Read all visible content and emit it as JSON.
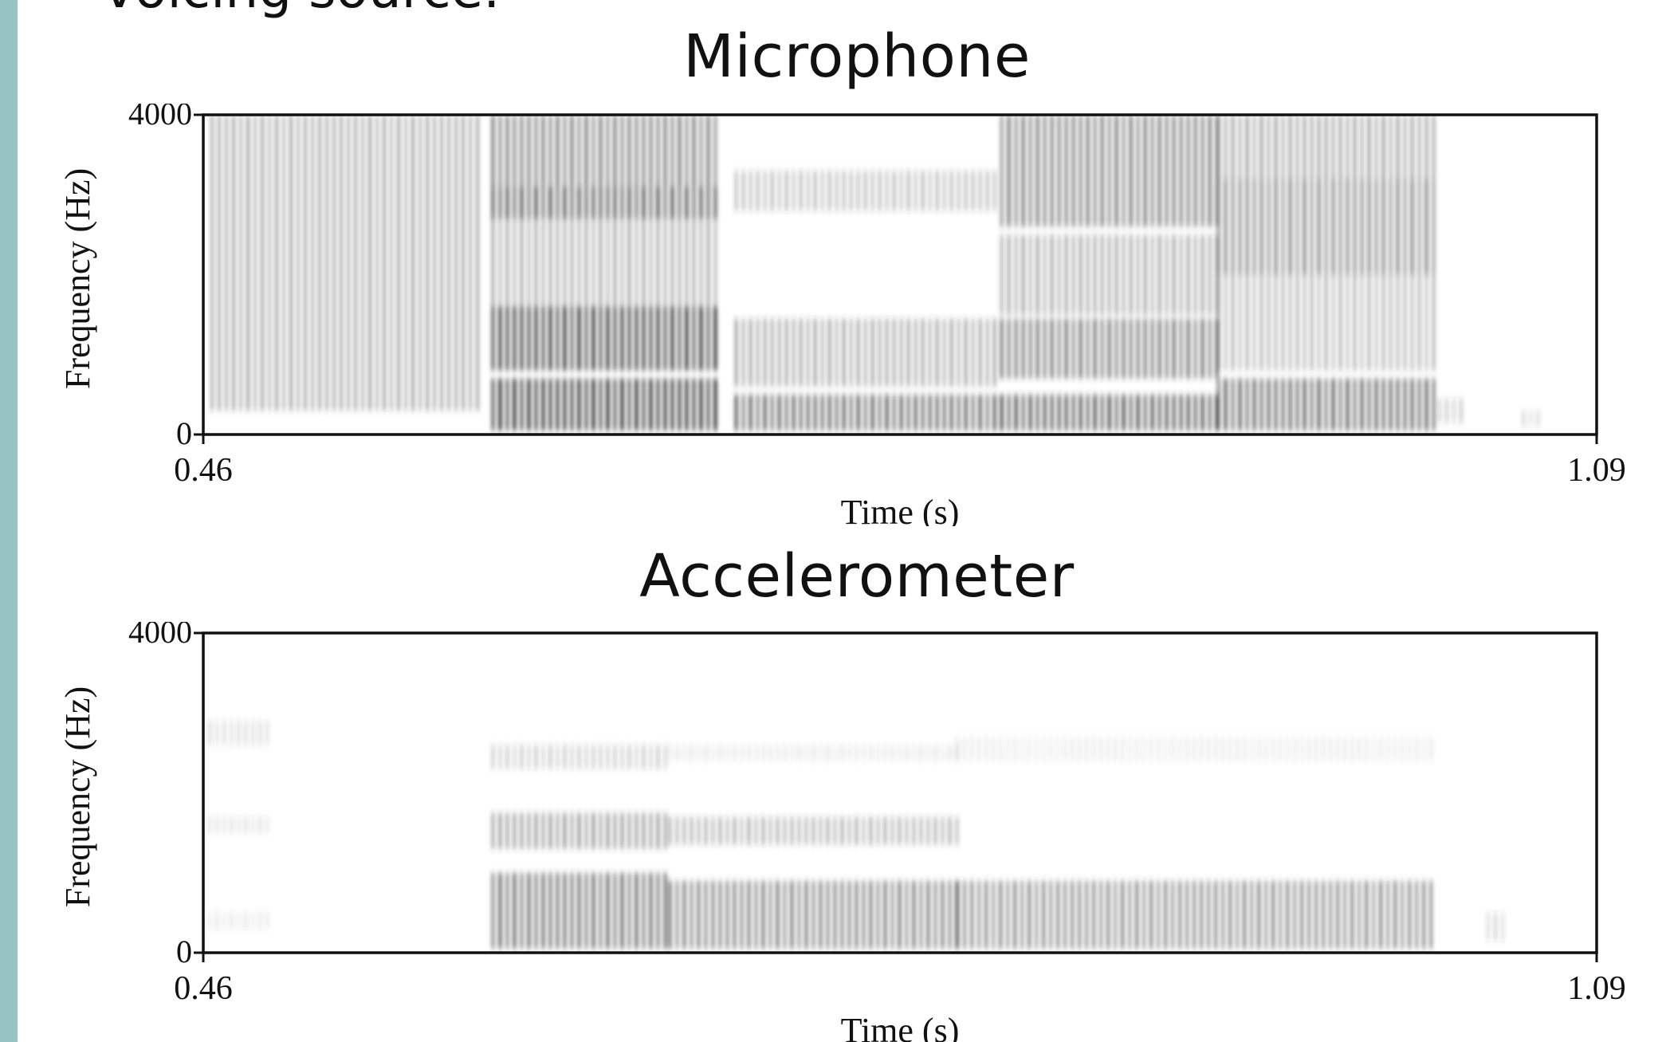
{
  "page": {
    "top_text": "voicing source.",
    "side_bar_color": "#97c3c2"
  },
  "chart_data": [
    {
      "type": "heatmap",
      "title": "Microphone",
      "xlabel": "Time (s)",
      "ylabel": "Frequency (Hz)",
      "xlim": [
        0.46,
        1.09
      ],
      "ylim": [
        0,
        4000
      ],
      "x_tick_labels": [
        "0.46",
        "1.09"
      ],
      "y_tick_labels": [
        "0",
        "4000"
      ],
      "segments": [
        {
          "t0": 0.463,
          "t1": 0.584,
          "bands": [
            [
              300,
              4000,
              0.34
            ]
          ]
        },
        {
          "t0": 0.59,
          "t1": 0.691,
          "bands": [
            [
              50,
              700,
              0.82
            ],
            [
              800,
              1600,
              0.78
            ],
            [
              2700,
              3100,
              0.66
            ],
            [
              1600,
              2700,
              0.32
            ],
            [
              3100,
              4000,
              0.52
            ]
          ]
        },
        {
          "t0": 0.7,
          "t1": 0.82,
          "bands": [
            [
              50,
              500,
              0.62
            ],
            [
              600,
              1450,
              0.34
            ],
            [
              2800,
              3300,
              0.26
            ]
          ]
        },
        {
          "t0": 0.82,
          "t1": 0.918,
          "bands": [
            [
              50,
              500,
              0.68
            ],
            [
              700,
              1450,
              0.54
            ],
            [
              1500,
              2500,
              0.34
            ],
            [
              2600,
              4000,
              0.52
            ]
          ]
        },
        {
          "t0": 0.918,
          "t1": 1.018,
          "bands": [
            [
              50,
              700,
              0.62
            ],
            [
              2000,
              3200,
              0.46
            ],
            [
              3200,
              4000,
              0.36
            ],
            [
              800,
              2000,
              0.28
            ]
          ]
        },
        {
          "t0": 1.018,
          "t1": 1.03,
          "bands": [
            [
              150,
              450,
              0.2
            ]
          ]
        },
        {
          "t0": 1.056,
          "t1": 1.064,
          "bands": [
            [
              100,
              300,
              0.14
            ]
          ]
        }
      ]
    },
    {
      "type": "heatmap",
      "title": "Accelerometer",
      "xlabel": "Time (s)",
      "ylabel": "Frequency (Hz)",
      "xlim": [
        0.46,
        1.09
      ],
      "ylim": [
        0,
        4000
      ],
      "x_tick_labels": [
        "0.46",
        "1.09"
      ],
      "y_tick_labels": [
        "0",
        "4000"
      ],
      "segments": [
        {
          "t0": 0.462,
          "t1": 0.49,
          "bands": [
            [
              2600,
              2900,
              0.14
            ],
            [
              1500,
              1700,
              0.12
            ],
            [
              300,
              500,
              0.1
            ]
          ]
        },
        {
          "t0": 0.59,
          "t1": 0.67,
          "bands": [
            [
              50,
              1000,
              0.58
            ],
            [
              1300,
              1750,
              0.4
            ],
            [
              2300,
              2600,
              0.2
            ]
          ]
        },
        {
          "t0": 0.67,
          "t1": 0.8,
          "bands": [
            [
              50,
              900,
              0.5
            ],
            [
              1350,
              1700,
              0.3
            ],
            [
              2400,
              2600,
              0.1
            ]
          ]
        },
        {
          "t0": 0.8,
          "t1": 1.016,
          "bands": [
            [
              50,
              900,
              0.46
            ],
            [
              2400,
              2700,
              0.08
            ]
          ]
        },
        {
          "t0": 1.04,
          "t1": 1.048,
          "bands": [
            [
              150,
              500,
              0.16
            ]
          ]
        }
      ]
    }
  ]
}
